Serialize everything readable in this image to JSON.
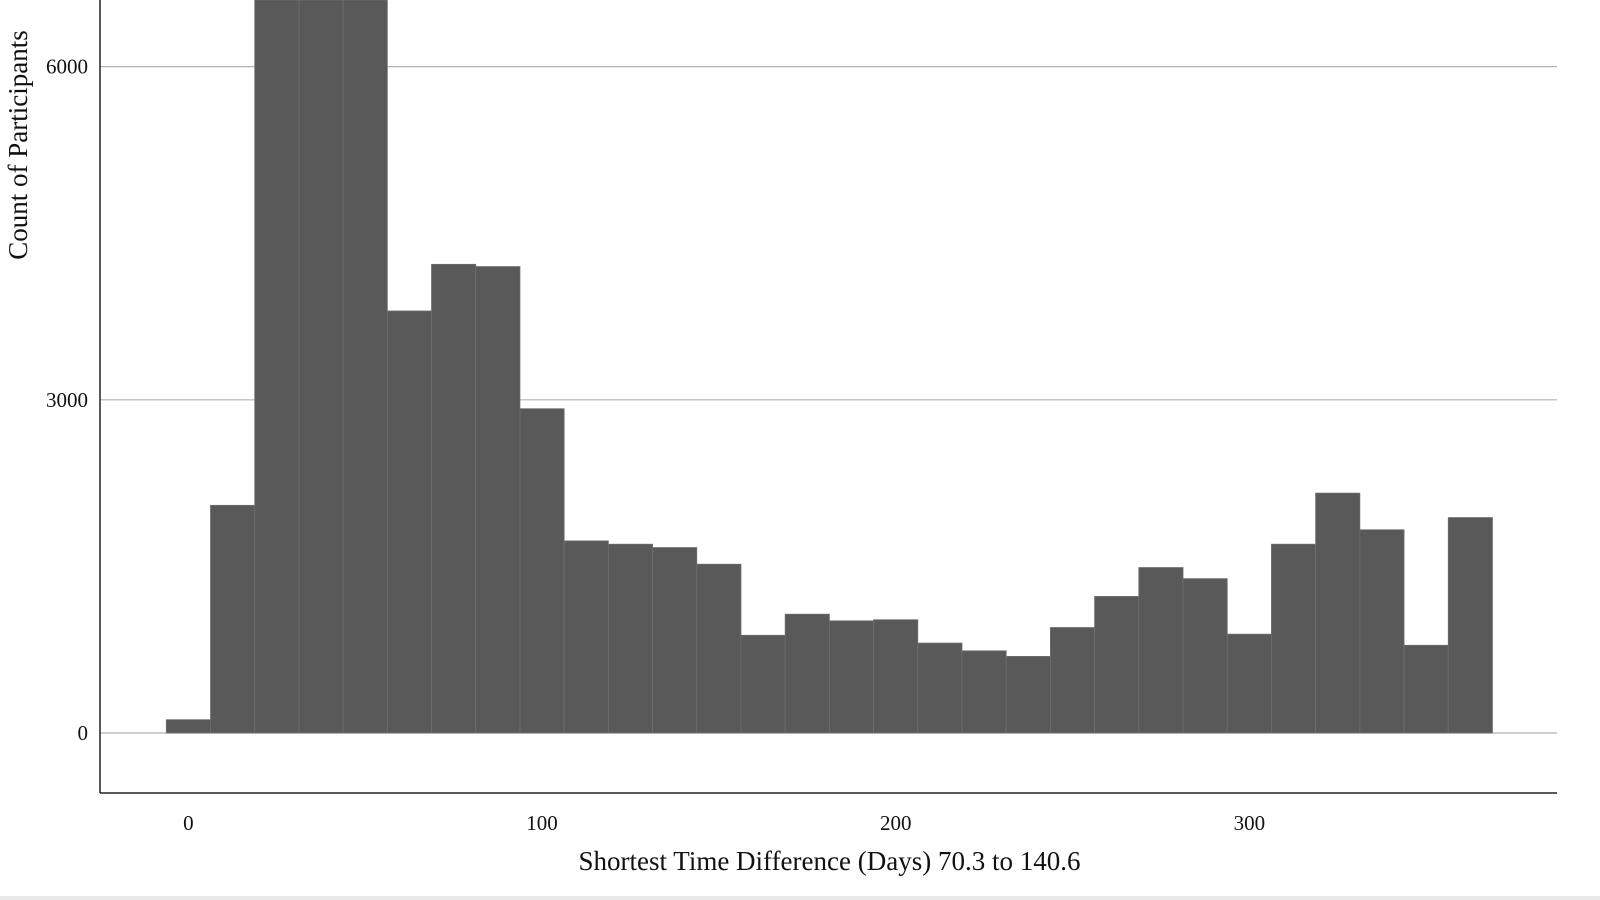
{
  "chart_data": {
    "type": "bar",
    "title": "",
    "xlabel": "Shortest Time Difference (Days) 70.3 to 140.6",
    "ylabel": "Count of Participants",
    "bin_width": 12.5,
    "x_start": -6.25,
    "values": [
      120,
      2050,
      7400,
      7400,
      7300,
      3800,
      4220,
      4200,
      2920,
      1730,
      1700,
      1670,
      1520,
      880,
      1070,
      1010,
      1020,
      810,
      740,
      690,
      950,
      1230,
      1490,
      1390,
      890,
      1700,
      2160,
      1830,
      790,
      1940
    ],
    "xlim": [
      -25,
      387
    ],
    "ylim": [
      -540,
      6600
    ],
    "x_ticks": [
      0,
      100,
      200,
      300
    ],
    "x_tick_labels": [
      "0",
      "100",
      "200",
      "300"
    ],
    "y_ticks": [
      0,
      3000,
      6000
    ],
    "y_tick_labels": [
      "0",
      "3000",
      "6000"
    ],
    "grid": "horizontal",
    "legend": "none"
  }
}
